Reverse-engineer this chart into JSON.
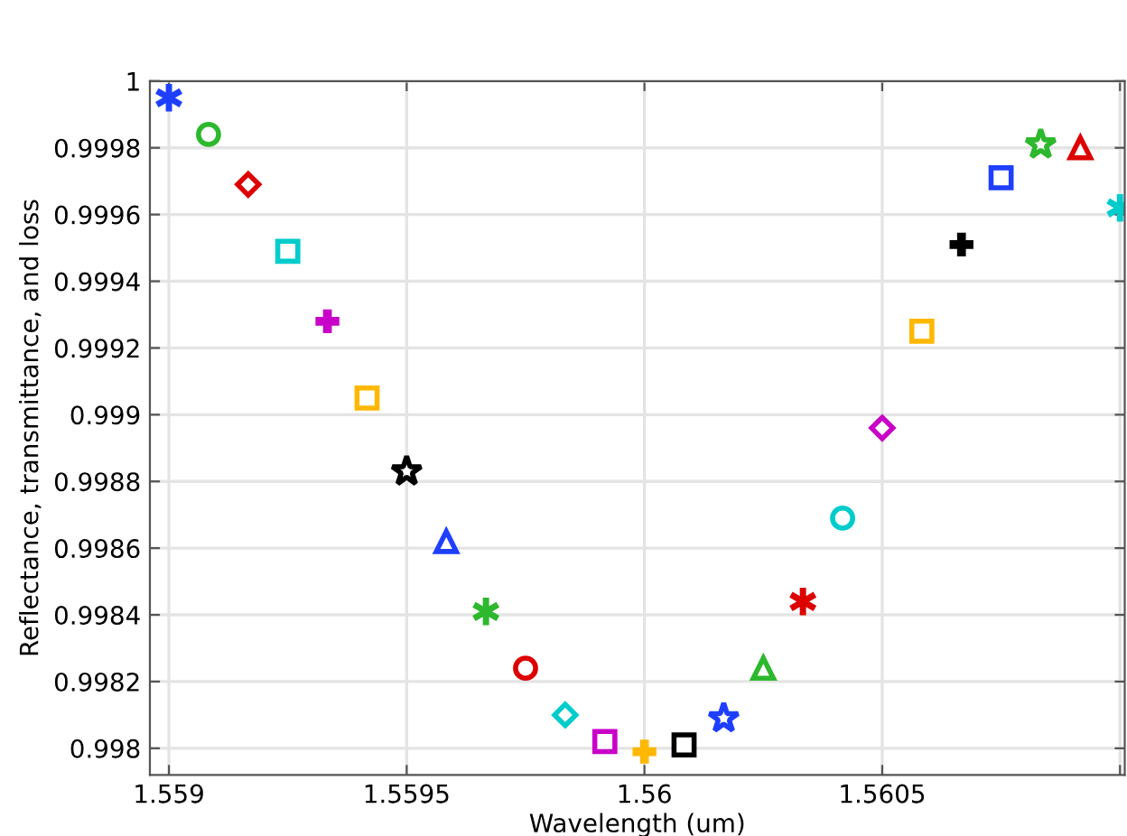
{
  "chart_data": {
    "type": "scatter",
    "xlabel": "Wavelength (um)",
    "ylabel": "Reflectance, transmittance, and loss",
    "xlim": [
      1.55896,
      1.56101
    ],
    "ylim": [
      0.99792,
      1.0
    ],
    "xticks": [
      1.559,
      1.5595,
      1.56,
      1.5605,
      {
        "value": 1.561,
        "label": null
      }
    ],
    "yticks": [
      {
        "value": 0.998,
        "label": "0.998"
      },
      0.9982,
      0.9984,
      0.9986,
      0.9988,
      {
        "value": 0.999,
        "label": "0.999"
      },
      0.9992,
      0.9994,
      0.9996,
      0.9998,
      {
        "value": 1.0,
        "label": "1"
      }
    ],
    "grid": true,
    "series": [
      {
        "color": "#1f3fff",
        "x": [
          1.559
        ],
        "values": [
          0.99995
        ]
      },
      {
        "color": "#2db82d",
        "marker": "circle",
        "x": [
          1.5590833
        ],
        "values": [
          0.99984
        ]
      },
      {
        "color": "#dd0000",
        "marker": "diamond",
        "x": [
          1.5591667
        ],
        "values": [
          0.99969
        ]
      },
      {
        "color": "#00cccc",
        "marker": "square",
        "x": [
          1.55925
        ],
        "values": [
          0.99949
        ]
      },
      {
        "color": "#c800c8",
        "marker": "cross",
        "x": [
          1.5593333
        ],
        "values": [
          0.99928
        ]
      },
      {
        "color": "#ffb800",
        "marker": "square",
        "x": [
          1.5594167
        ],
        "values": [
          0.99905
        ]
      },
      {
        "color": "#000000",
        "marker": "star",
        "x": [
          1.5595
        ],
        "values": [
          0.99883
        ]
      },
      {
        "color": "#1f3fff",
        "marker": "triangle",
        "x": [
          1.5595833
        ],
        "values": [
          0.99862
        ]
      },
      {
        "color": "#2db82d",
        "x": [
          1.5596667
        ],
        "values": [
          0.99841
        ]
      },
      {
        "color": "#dd0000",
        "marker": "circle",
        "x": [
          1.55975
        ],
        "values": [
          0.99824
        ]
      },
      {
        "color": "#00cccc",
        "marker": "diamond",
        "x": [
          1.5598333
        ],
        "values": [
          0.9981
        ]
      },
      {
        "color": "#c800c8",
        "marker": "square",
        "x": [
          1.5599167
        ],
        "values": [
          0.99802
        ]
      },
      {
        "color": "#ffb800",
        "marker": "cross",
        "x": [
          1.56
        ],
        "values": [
          0.99799
        ]
      },
      {
        "color": "#000000",
        "marker": "square",
        "x": [
          1.5600833
        ],
        "values": [
          0.99801
        ]
      },
      {
        "color": "#1f3fff",
        "marker": "star",
        "x": [
          1.5601667
        ],
        "values": [
          0.99809
        ]
      },
      {
        "color": "#2db82d",
        "marker": "triangle",
        "x": [
          1.56025
        ],
        "values": [
          0.99824
        ]
      },
      {
        "color": "#dd0000",
        "x": [
          1.5603333
        ],
        "values": [
          0.99844
        ]
      },
      {
        "color": "#00cccc",
        "marker": "circle",
        "x": [
          1.5604167
        ],
        "values": [
          0.99869
        ]
      },
      {
        "color": "#c800c8",
        "marker": "diamond",
        "x": [
          1.5605
        ],
        "values": [
          0.99896
        ]
      },
      {
        "color": "#ffb800",
        "marker": "square",
        "x": [
          1.5605833
        ],
        "values": [
          0.99925
        ]
      },
      {
        "color": "#000000",
        "marker": "cross",
        "x": [
          1.5606667
        ],
        "values": [
          0.99951
        ]
      },
      {
        "color": "#1f3fff",
        "marker": "square",
        "x": [
          1.56075
        ],
        "values": [
          0.99971
        ]
      },
      {
        "color": "#2db82d",
        "marker": "star",
        "x": [
          1.5608333
        ],
        "values": [
          0.99981
        ]
      },
      {
        "color": "#dd0000",
        "marker": "triangle",
        "x": [
          1.5609167
        ],
        "values": [
          0.9998
        ]
      },
      {
        "color": "#00cccc",
        "x": [
          1.561
        ],
        "values": [
          0.99962
        ]
      }
    ]
  }
}
